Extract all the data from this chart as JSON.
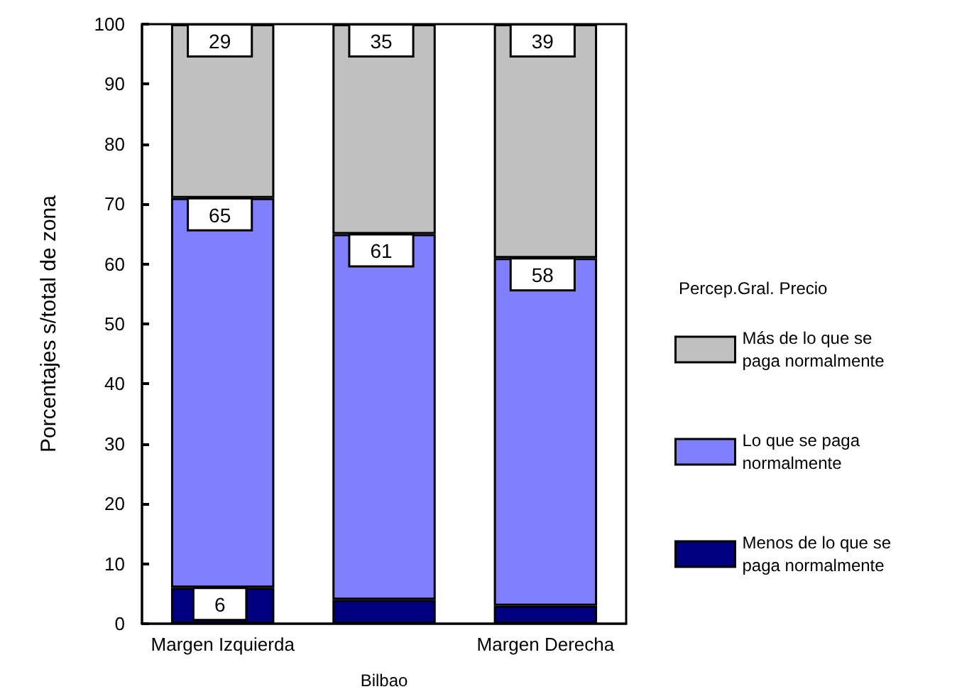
{
  "chart_data": {
    "type": "bar",
    "stacked": true,
    "xlabel": "Bilbao",
    "ylabel": "Porcentajes s/total de zona",
    "legend_title": "Percep.Gral. Precio",
    "categories": [
      "Margen Izquierda",
      null,
      "Margen Derecha"
    ],
    "series": [
      {
        "name": "Menos de lo que se paga normalmente",
        "color": "#000080",
        "values": [
          6,
          4,
          3
        ],
        "value_labels": [
          "6",
          null,
          null
        ]
      },
      {
        "name": "Lo que se paga normalmente",
        "color": "#8080ff",
        "values": [
          65,
          61,
          58
        ],
        "value_labels": [
          "65",
          "61",
          "58"
        ]
      },
      {
        "name": "Más de lo que se paga normalmente",
        "color": "#c0c0c0",
        "values": [
          29,
          35,
          39
        ],
        "value_labels": [
          "29",
          "35",
          "39"
        ]
      }
    ],
    "ylim": [
      0,
      100
    ],
    "yticks": [
      0,
      10,
      20,
      30,
      40,
      50,
      60,
      70,
      80,
      90,
      100
    ],
    "grid": false,
    "legend": "right"
  }
}
